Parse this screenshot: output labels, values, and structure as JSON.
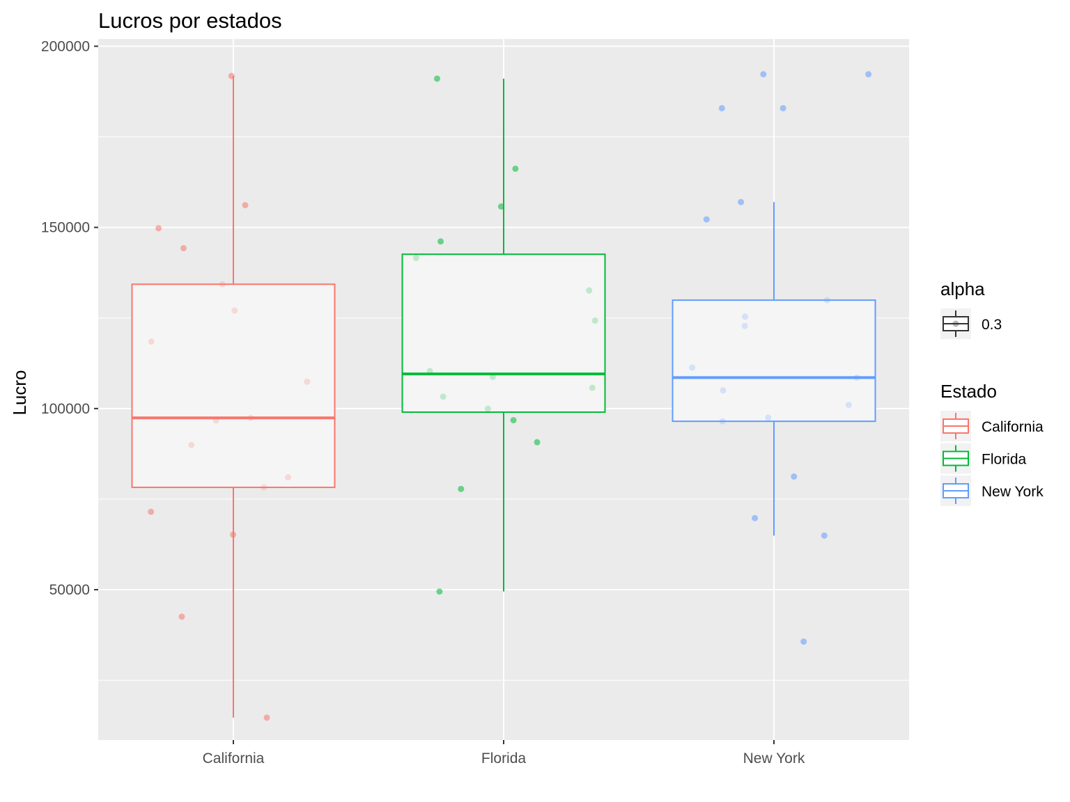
{
  "chart_data": {
    "type": "boxplot",
    "title": "Lucros por estados",
    "xlabel": "",
    "ylabel": "Lucro",
    "ylim": [
      8500,
      202000
    ],
    "y_ticks": [
      50000,
      100000,
      150000,
      200000
    ],
    "y_tick_labels": [
      "50000",
      "100000",
      "150000",
      "200000"
    ],
    "categories": [
      "California",
      "Florida",
      "New York"
    ],
    "grid": true,
    "legend_position": "right",
    "colors": {
      "California": "#F8766D",
      "Florida": "#00BA38",
      "New York": "#619CFF",
      "panel_bg": "#EBEBEB",
      "box_fill": "#F5F5F5"
    },
    "boxes": [
      {
        "name": "California",
        "whisker_low": 14681,
        "q1": 78240,
        "median": 97427,
        "q3": 134307,
        "whisker_high": 191792
      },
      {
        "name": "Florida",
        "whisker_low": 49490,
        "q1": 99010,
        "median": 109543,
        "q3": 142586,
        "whisker_high": 191050
      },
      {
        "name": "New York",
        "whisker_low": 64927,
        "q1": 96479,
        "median": 108552,
        "q3": 129917,
        "whisker_high": 156991
      }
    ],
    "points": [
      {
        "name": "California",
        "values": [
          191792,
          156122,
          149760,
          144259,
          134307,
          127056,
          118474,
          107404,
          97427,
          96712,
          89949,
          81006,
          78240,
          71498,
          65200,
          42560,
          14681
        ]
      },
      {
        "name": "Florida",
        "values": [
          191050,
          166188,
          155753,
          146122,
          141586,
          132602,
          124267,
          110352,
          108734,
          105733,
          103282,
          99938,
          96779,
          90708,
          77798,
          49490
        ]
      },
      {
        "name": "New York",
        "values": [
          192262,
          192262,
          182902,
          182902,
          156991,
          152212,
          129917,
          125370,
          122777,
          111313,
          108552,
          105008,
          101004,
          97483,
          96479,
          81229,
          69759,
          64927,
          35673
        ]
      }
    ],
    "legends": [
      {
        "title": "alpha",
        "entries": [
          "0.3"
        ]
      },
      {
        "title": "Estado",
        "entries": [
          "California",
          "Florida",
          "New York"
        ]
      }
    ]
  }
}
